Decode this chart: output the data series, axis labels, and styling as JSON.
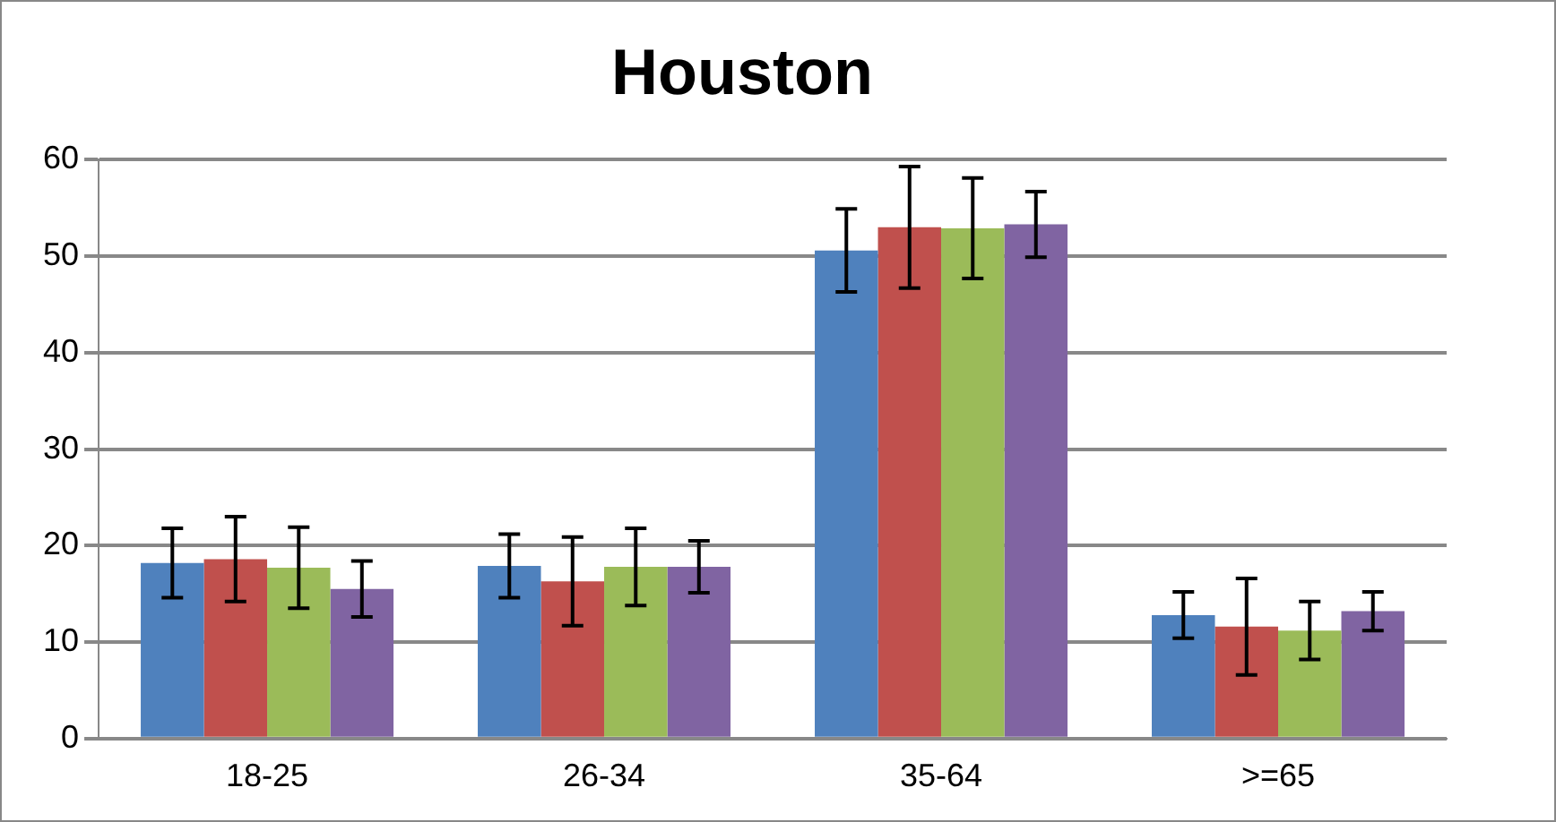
{
  "chart_data": {
    "type": "bar",
    "title": "Houston",
    "categories": [
      "18-25",
      "26-34",
      "35-64",
      ">=65"
    ],
    "series": [
      {
        "color": "#4f81bd",
        "values": [
          18.2,
          17.9,
          50.6,
          12.8
        ],
        "errors": [
          3.6,
          3.3,
          4.3,
          2.4
        ]
      },
      {
        "color": "#c0504d",
        "values": [
          18.6,
          16.3,
          53.0,
          11.6
        ],
        "errors": [
          4.4,
          4.6,
          6.3,
          5.0
        ]
      },
      {
        "color": "#9bbb59",
        "values": [
          17.7,
          17.8,
          52.9,
          11.2
        ],
        "errors": [
          4.2,
          4.0,
          5.2,
          3.0
        ]
      },
      {
        "color": "#8064a2",
        "values": [
          15.5,
          17.8,
          53.3,
          13.2
        ],
        "errors": [
          2.9,
          2.7,
          3.4,
          2.0
        ]
      }
    ],
    "ylim": [
      0,
      60
    ],
    "yticks": [
      0,
      10,
      20,
      30,
      40,
      50,
      60
    ],
    "grid": "y",
    "legend": false
  }
}
